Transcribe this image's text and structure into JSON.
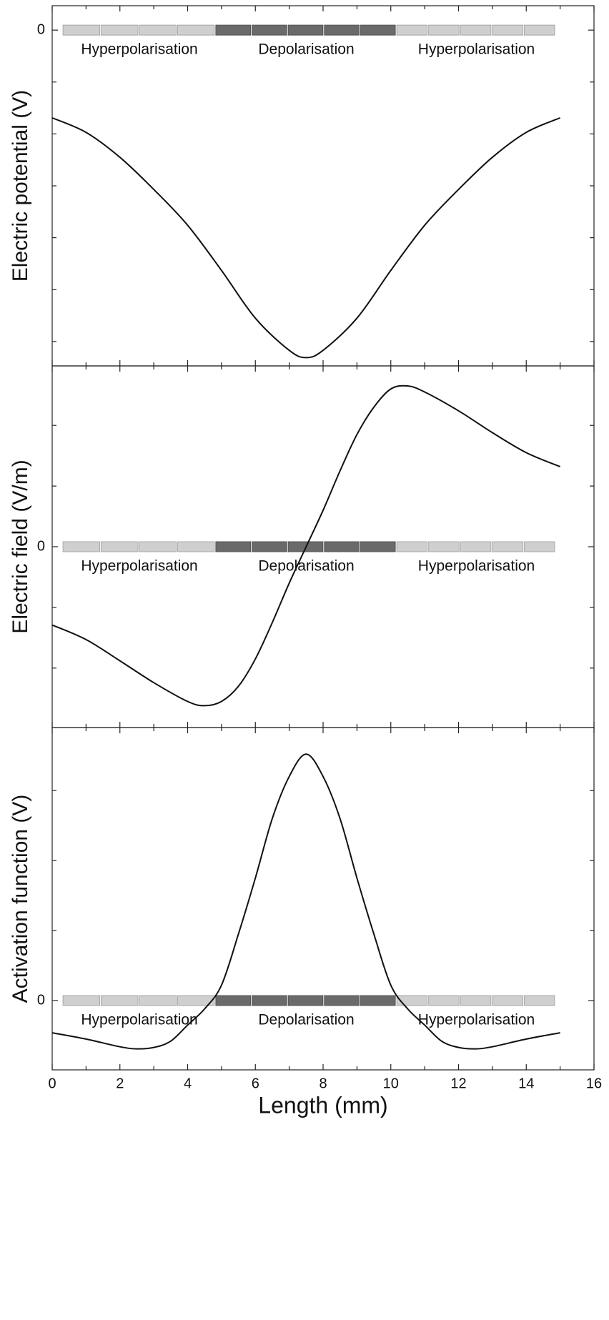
{
  "chart_data": [
    {
      "type": "line",
      "ylabel": "Electric potential (V)",
      "x": [
        0,
        1,
        2,
        3,
        4,
        5,
        6,
        7,
        7.5,
        8,
        9,
        10,
        11,
        12,
        13,
        14,
        15
      ],
      "values": [
        -1.69,
        -1.97,
        -2.45,
        -3.07,
        -3.76,
        -4.63,
        -5.55,
        -6.17,
        -6.31,
        -6.17,
        -5.55,
        -4.63,
        -3.76,
        -3.07,
        -2.45,
        -1.97,
        -1.69
      ],
      "color": "#111111",
      "xlim": [
        0,
        16
      ],
      "ylim": [
        -6.47,
        0.47
      ],
      "yticks": [
        0
      ],
      "minor_yticks": [
        -6,
        -5,
        -4,
        -3,
        -2,
        -1
      ],
      "annotations": [
        "Hyperpolarisation",
        "Depolarisation",
        "Hyperpolarisation"
      ]
    },
    {
      "type": "line",
      "ylabel": "Electric field (V/m)",
      "x": [
        0,
        1,
        2,
        3,
        4,
        4.5,
        5,
        5.5,
        6,
        6.5,
        7,
        7.5,
        8,
        8.5,
        9,
        9.5,
        10,
        10.5,
        11,
        12,
        13,
        14,
        15
      ],
      "values": [
        -1.29,
        -1.53,
        -1.88,
        -2.24,
        -2.55,
        -2.62,
        -2.55,
        -2.3,
        -1.85,
        -1.25,
        -0.6,
        0,
        0.6,
        1.25,
        1.85,
        2.3,
        2.6,
        2.65,
        2.55,
        2.24,
        1.88,
        1.55,
        1.32
      ],
      "color": "#111111",
      "xlim": [
        0,
        16
      ],
      "ylim": [
        -2.98,
        2.98
      ],
      "yticks": [
        0
      ],
      "minor_yticks": [
        -2,
        -1,
        1,
        2
      ],
      "annotations": [
        "Hyperpolarisation",
        "Depolarisation",
        "Hyperpolarisation"
      ]
    },
    {
      "type": "line",
      "ylabel": "Activation function (V)",
      "xlabel": "Length (mm)",
      "x": [
        0,
        1,
        2,
        2.5,
        3,
        3.5,
        4,
        4.5,
        5,
        5.5,
        6,
        6.5,
        7,
        7.5,
        8,
        8.5,
        9,
        9.5,
        10,
        10.5,
        11,
        11.5,
        12,
        12.5,
        13,
        14,
        15
      ],
      "values": [
        -0.46,
        -0.55,
        -0.66,
        -0.69,
        -0.67,
        -0.58,
        -0.35,
        -0.12,
        0.22,
        0.95,
        1.75,
        2.6,
        3.2,
        3.52,
        3.2,
        2.6,
        1.75,
        0.95,
        0.22,
        -0.12,
        -0.35,
        -0.58,
        -0.67,
        -0.69,
        -0.66,
        -0.55,
        -0.46
      ],
      "color": "#111111",
      "xlim": [
        0,
        16
      ],
      "ylim": [
        -0.99,
        3.9
      ],
      "yticks": [
        0
      ],
      "minor_yticks": [
        1,
        2,
        3
      ],
      "xticks": [
        0,
        2,
        4,
        6,
        8,
        10,
        12,
        14,
        16
      ],
      "minor_xticks": [
        1,
        3,
        5,
        7,
        9,
        11,
        13,
        15
      ],
      "annotations": [
        "Hyperpolarisation",
        "Depolarisation",
        "Hyperpolarisation"
      ]
    }
  ]
}
